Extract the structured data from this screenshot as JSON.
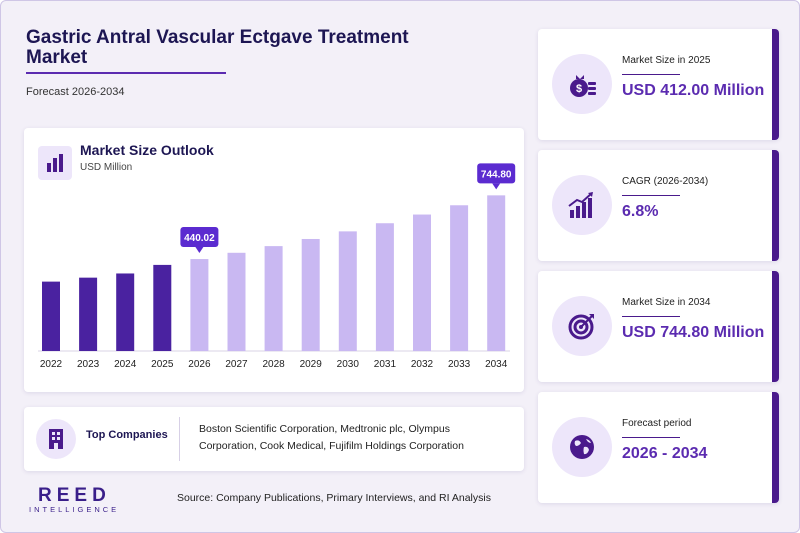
{
  "header": {
    "title": "Gastric Antral Vascular Ectgave Treatment Market",
    "forecast": "Forecast 2026-2034"
  },
  "chart_card": {
    "title": "Market Size Outlook",
    "unit": "USD Million"
  },
  "chart_data": {
    "type": "bar",
    "title": "Market Size Outlook",
    "ylabel": "USD Million",
    "categories": [
      "2022",
      "2023",
      "2024",
      "2025",
      "2026",
      "2027",
      "2028",
      "2029",
      "2030",
      "2031",
      "2032",
      "2033",
      "2034"
    ],
    "values": [
      332,
      351,
      371,
      412,
      440.02,
      469.94,
      501.9,
      536.03,
      572.48,
      611.4,
      652.98,
      697.38,
      744.8
    ],
    "ylim": [
      0,
      780
    ],
    "historical_color": "#4a22a0",
    "forecast_color": "#c9b8f2",
    "callouts": [
      {
        "index": 4,
        "label": "440.02"
      },
      {
        "index": 12,
        "label": "744.80"
      }
    ],
    "callout_color": "#5b2bd0",
    "grid": false,
    "legend": "none"
  },
  "companies": {
    "label": "Top Companies",
    "text": "Boston Scientific Corporation, Medtronic plc, Olympus Corporation, Cook Medical, Fujifilm Holdings Corporation"
  },
  "logo": {
    "main": "REED",
    "sub": "INTELLIGENCE"
  },
  "source": "Source: Company Publications, Primary Interviews, and RI Analysis",
  "stats": [
    {
      "label": "Market Size in 2025",
      "value": "USD 412.00 Million",
      "icon": "money-bag-icon"
    },
    {
      "label": "CAGR (2026-2034)",
      "value": "6.8%",
      "icon": "growth-chart-icon"
    },
    {
      "label": "Market Size in 2034",
      "value": "USD 744.80 Million",
      "icon": "target-icon"
    },
    {
      "label": "Forecast period",
      "value": "2026 - 2034",
      "icon": "globe-icon"
    }
  ],
  "colors": {
    "accent": "#5b2bb0",
    "dark": "#4a1a8c",
    "title": "#1d1653"
  }
}
